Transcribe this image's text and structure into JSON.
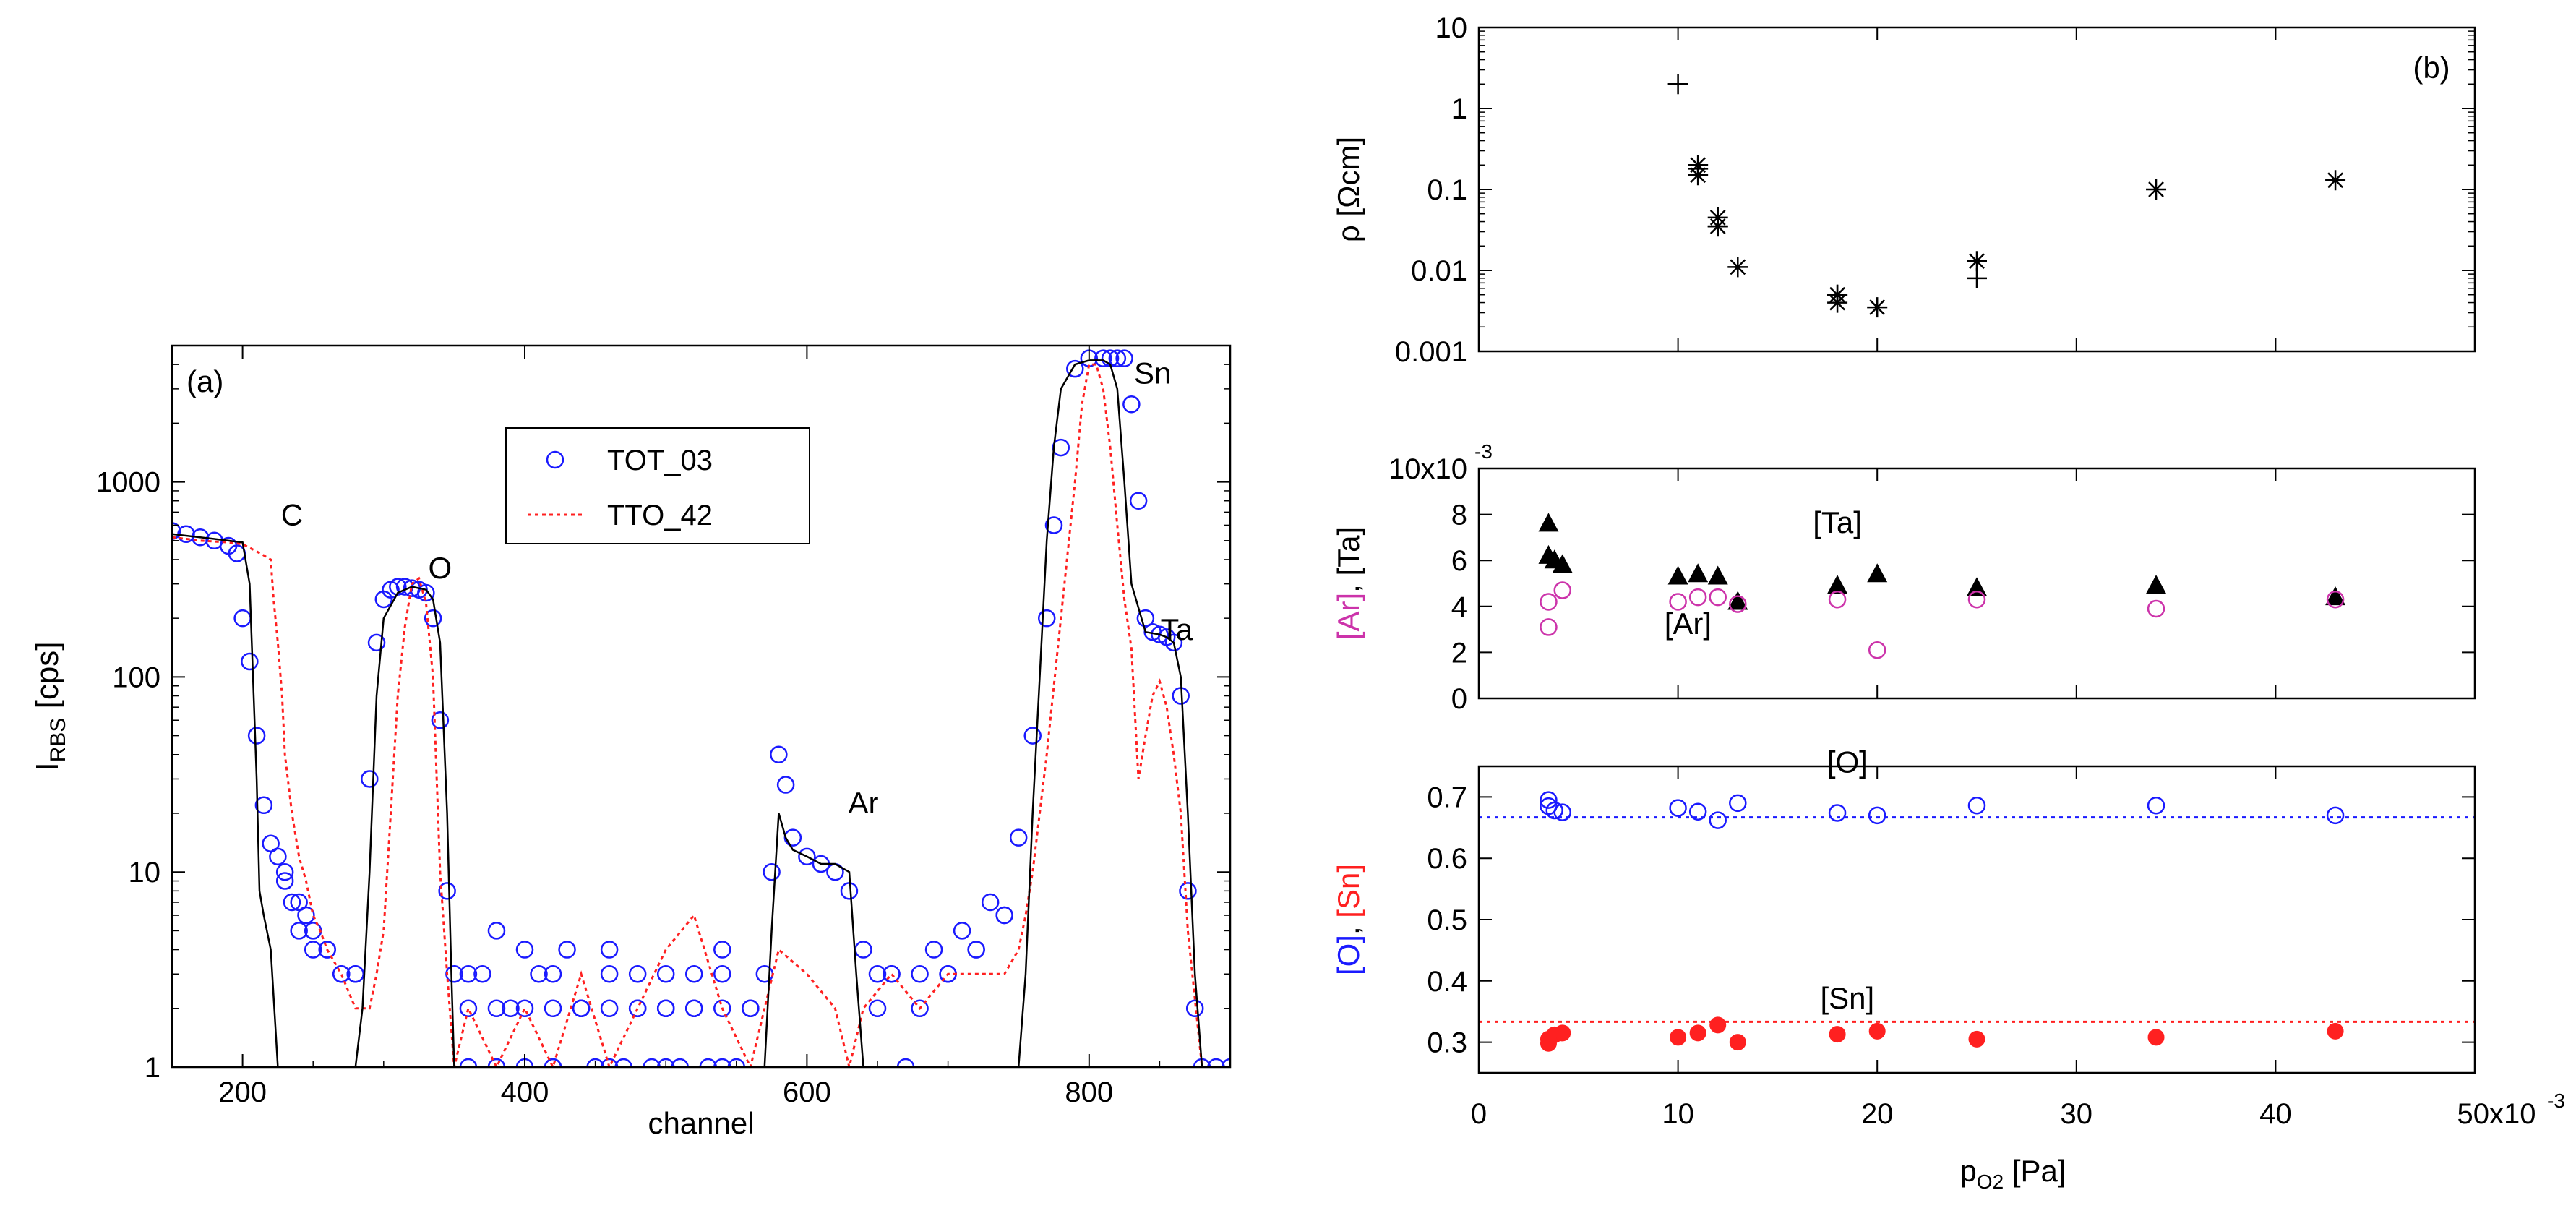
{
  "chart_data": [
    {
      "id": "a",
      "type": "line",
      "panel_label": "(a)",
      "xlabel": "channel",
      "ylabel_main": "I",
      "ylabel_sub": "RBS",
      "ylabel_unit": " [cps]",
      "xlim": [
        150,
        900
      ],
      "ylim": [
        1,
        5000
      ],
      "yscale": "log",
      "xticks": [
        200,
        400,
        600,
        800
      ],
      "xtick_labels": [
        "200",
        "400",
        "600",
        "800"
      ],
      "yticks": [
        1,
        10,
        100,
        1000
      ],
      "ytick_labels": [
        "1",
        "10",
        "100",
        "1000"
      ],
      "legend": [
        {
          "label": "TOT_03",
          "style": "circle",
          "color": "#1a1aff"
        },
        {
          "label": "TTO_42",
          "style": "dotted",
          "color": "#ff2020"
        }
      ],
      "annotations": [
        {
          "text": "C",
          "x": 235,
          "y": 600
        },
        {
          "text": "O",
          "x": 340,
          "y": 320
        },
        {
          "text": "Ar",
          "x": 640,
          "y": 20
        },
        {
          "text": "Sn",
          "x": 845,
          "y": 3200
        },
        {
          "text": "Ta",
          "x": 862,
          "y": 155
        }
      ],
      "series": [
        {
          "name": "TOT_03",
          "style": "circle",
          "color": "#1a1aff",
          "x": [
            150,
            160,
            170,
            180,
            190,
            196,
            200,
            205,
            210,
            215,
            220,
            225,
            230,
            235,
            240,
            250,
            260,
            270,
            280,
            290,
            295,
            300,
            305,
            310,
            315,
            320,
            325,
            330,
            335,
            340,
            345,
            350,
            360,
            380,
            400,
            420,
            440,
            460,
            480,
            500,
            520,
            540,
            560,
            570,
            575,
            580,
            585,
            590,
            600,
            610,
            620,
            630,
            640,
            650,
            660,
            680,
            700,
            720,
            740,
            750,
            760,
            770,
            775,
            780,
            790,
            800,
            810,
            815,
            820,
            825,
            830,
            835,
            840,
            845,
            850,
            855,
            860,
            865,
            870,
            875,
            880,
            890,
            900
          ],
          "y": [
            560,
            540,
            520,
            500,
            470,
            430,
            200,
            120,
            50,
            22,
            14,
            12,
            9,
            7,
            5,
            4,
            4,
            3,
            3,
            30,
            150,
            250,
            280,
            290,
            290,
            285,
            280,
            270,
            200,
            60,
            8,
            3,
            2,
            2,
            2,
            2,
            2,
            2,
            2,
            2,
            2,
            2,
            2,
            3,
            10,
            40,
            28,
            15,
            12,
            11,
            10,
            8,
            4,
            3,
            3,
            3,
            3,
            4,
            6,
            15,
            50,
            200,
            600,
            1500,
            3800,
            4300,
            4300,
            4300,
            4300,
            4300,
            2500,
            800,
            200,
            170,
            165,
            160,
            150,
            80,
            8,
            2,
            1,
            1,
            1
          ]
        },
        {
          "name": "TOT_03 scatter",
          "style": "circle",
          "color": "#1a1aff",
          "x": [
            230,
            240,
            245,
            250,
            260,
            270,
            280,
            360,
            370,
            380,
            390,
            400,
            410,
            420,
            430,
            440,
            450,
            460,
            470,
            480,
            490,
            500,
            510,
            520,
            530,
            540,
            550,
            560,
            650,
            660,
            670,
            680,
            690,
            700,
            710,
            720,
            730,
            740,
            360,
            380,
            400,
            420,
            440,
            460,
            480,
            500,
            520,
            540,
            380,
            420,
            460,
            500,
            540
          ],
          "y": [
            10,
            7,
            6,
            5,
            4,
            3,
            3,
            1,
            3,
            1,
            2,
            1,
            3,
            1,
            4,
            2,
            1,
            3,
            1,
            2,
            1,
            3,
            1,
            2,
            1,
            3,
            1,
            2,
            2,
            3,
            1,
            2,
            4,
            3,
            5,
            4,
            7,
            6,
            3,
            5,
            4,
            3,
            2,
            4,
            3,
            2,
            3,
            4,
            1,
            1,
            1,
            1,
            1
          ]
        },
        {
          "name": "TTO_42",
          "style": "dotted",
          "color": "#ff2020",
          "x": [
            150,
            170,
            190,
            200,
            210,
            215,
            220,
            222,
            225,
            228,
            230,
            235,
            240,
            245,
            250,
            255,
            260,
            270,
            280,
            290,
            295,
            300,
            305,
            310,
            315,
            320,
            325,
            330,
            335,
            340,
            345,
            350,
            360,
            380,
            400,
            420,
            440,
            460,
            480,
            500,
            520,
            540,
            560,
            580,
            600,
            620,
            630,
            640,
            660,
            680,
            700,
            720,
            740,
            750,
            755,
            760,
            770,
            780,
            790,
            795,
            800,
            805,
            810,
            815,
            820,
            825,
            830,
            835,
            840,
            845,
            850,
            855,
            860,
            865,
            870,
            880,
            900
          ],
          "y": [
            520,
            500,
            490,
            480,
            440,
            420,
            400,
            250,
            150,
            80,
            40,
            20,
            12,
            9,
            6,
            5,
            4,
            3,
            2,
            2,
            3,
            5,
            20,
            80,
            180,
            300,
            320,
            240,
            100,
            10,
            3,
            1,
            2,
            1,
            2,
            1,
            3,
            1,
            2,
            4,
            6,
            2,
            1,
            4,
            3,
            2,
            1,
            2,
            3,
            2,
            3,
            3,
            3,
            4,
            6,
            10,
            40,
            200,
            1000,
            2500,
            4000,
            4000,
            3000,
            1500,
            600,
            250,
            140,
            30,
            50,
            80,
            95,
            70,
            40,
            20,
            5,
            1,
            1
          ]
        },
        {
          "name": "fit",
          "style": "solid",
          "color": "#000000",
          "x": [
            150,
            180,
            200,
            205,
            210,
            212,
            215,
            220,
            225,
            280,
            285,
            290,
            295,
            300,
            310,
            320,
            330,
            335,
            340,
            345,
            348,
            350,
            570,
            575,
            580,
            585,
            590,
            600,
            610,
            620,
            630,
            635,
            640,
            750,
            755,
            760,
            765,
            770,
            775,
            780,
            790,
            800,
            810,
            815,
            820,
            825,
            830,
            840,
            850,
            855,
            860,
            865,
            870,
            875,
            880
          ],
          "y": [
            540,
            510,
            490,
            300,
            30,
            8,
            6,
            4,
            1,
            1,
            2,
            10,
            80,
            200,
            270,
            290,
            280,
            250,
            150,
            20,
            3,
            1,
            1,
            5,
            20,
            15,
            13,
            12,
            11,
            11,
            10,
            3,
            1,
            1,
            3,
            20,
            100,
            500,
            1500,
            3000,
            4000,
            4200,
            4200,
            4000,
            3000,
            1000,
            300,
            170,
            165,
            160,
            150,
            100,
            20,
            3,
            1
          ]
        }
      ]
    },
    {
      "id": "b_top",
      "type": "scatter",
      "panel_label": "(b)",
      "ylabel": "ρ [Ωcm]",
      "xlim": [
        0,
        0.05
      ],
      "ylim": [
        0.001,
        10
      ],
      "yscale": "log",
      "yticks": [
        0.001,
        0.01,
        0.1,
        1,
        10
      ],
      "ytick_labels": [
        "0.001",
        "0.01",
        "0.1",
        "1",
        "10"
      ],
      "series": [
        {
          "name": "plus",
          "style": "plus",
          "color": "#000000",
          "x": [
            0.01,
            0.011,
            0.012,
            0.018,
            0.025
          ],
          "y": [
            2.0,
            0.18,
            0.035,
            0.005,
            0.008
          ]
        },
        {
          "name": "star",
          "style": "asterisk",
          "color": "#000000",
          "x": [
            0.011,
            0.011,
            0.012,
            0.012,
            0.013,
            0.018,
            0.018,
            0.02,
            0.025,
            0.034,
            0.043
          ],
          "y": [
            0.2,
            0.15,
            0.045,
            0.035,
            0.011,
            0.005,
            0.004,
            0.0035,
            0.013,
            0.1,
            0.13
          ]
        }
      ]
    },
    {
      "id": "b_mid",
      "type": "scatter",
      "ylabel_parts": [
        {
          "text": "[Ar]",
          "color": "#cc33aa"
        },
        {
          "text": ", [Ta]",
          "color": "#000000"
        }
      ],
      "xlim": [
        0,
        0.05
      ],
      "ylim": [
        0,
        0.01
      ],
      "yticks": [
        0,
        0.002,
        0.004,
        0.006,
        0.008,
        0.01
      ],
      "ytick_labels": [
        "0",
        "2",
        "4",
        "6",
        "8",
        "10x10"
      ],
      "ytick_exponent": "-3",
      "annotations": [
        {
          "text": "[Ta]",
          "color": "#000000",
          "x": 0.018,
          "y": 0.0072
        },
        {
          "text": "[Ar]",
          "color": "#cc33aa",
          "x": 0.0105,
          "y": 0.0028
        }
      ],
      "series": [
        {
          "name": "[Ta]",
          "style": "triangle",
          "color": "#000000",
          "x": [
            0.0035,
            0.0035,
            0.0038,
            0.0042,
            0.01,
            0.011,
            0.012,
            0.013,
            0.018,
            0.02,
            0.025,
            0.034,
            0.043
          ],
          "y": [
            0.0076,
            0.0062,
            0.006,
            0.0058,
            0.0053,
            0.0054,
            0.0053,
            0.0042,
            0.0049,
            0.0054,
            0.0048,
            0.0049,
            0.0044
          ]
        },
        {
          "name": "[Ar]",
          "style": "circle",
          "color": "#cc33aa",
          "x": [
            0.0035,
            0.0035,
            0.0042,
            0.01,
            0.011,
            0.012,
            0.013,
            0.018,
            0.02,
            0.025,
            0.034,
            0.043
          ],
          "y": [
            0.0031,
            0.0042,
            0.0047,
            0.0042,
            0.0044,
            0.0044,
            0.0041,
            0.0043,
            0.0021,
            0.0043,
            0.0039,
            0.0043
          ]
        }
      ]
    },
    {
      "id": "b_bot",
      "type": "scatter",
      "ylabel_parts": [
        {
          "text": "[O]",
          "color": "#1a1aff"
        },
        {
          "text": ", ",
          "color": "#000000"
        },
        {
          "text": "[Sn]",
          "color": "#ff2020"
        }
      ],
      "xlabel_main": "p",
      "xlabel_sub": "O2",
      "xlabel_unit": " [Pa]",
      "xlim": [
        0,
        0.05
      ],
      "ylim": [
        0.25,
        0.75
      ],
      "xticks": [
        0,
        0.01,
        0.02,
        0.03,
        0.04,
        0.05
      ],
      "xtick_labels": [
        "0",
        "10",
        "20",
        "30",
        "40",
        "50x10"
      ],
      "xtick_exponent": "-3",
      "yticks": [
        0.3,
        0.4,
        0.5,
        0.6,
        0.7
      ],
      "ytick_labels": [
        "0.3",
        "0.4",
        "0.5",
        "0.6",
        "0.7"
      ],
      "reference_lines": [
        {
          "y": 0.6667,
          "color": "#1a1aff",
          "style": "dotted"
        },
        {
          "y": 0.3333,
          "color": "#ff2020",
          "style": "dotted"
        }
      ],
      "annotations": [
        {
          "text": "[O]",
          "color": "#1a1aff",
          "x": 0.0185,
          "y": 0.74
        },
        {
          "text": "[Sn]",
          "color": "#ff2020",
          "x": 0.0185,
          "y": 0.355
        }
      ],
      "series": [
        {
          "name": "[O]",
          "style": "circle",
          "color": "#1a1aff",
          "x": [
            0.0035,
            0.0035,
            0.0038,
            0.0042,
            0.01,
            0.011,
            0.012,
            0.013,
            0.018,
            0.02,
            0.025,
            0.034,
            0.043
          ],
          "y": [
            0.695,
            0.685,
            0.678,
            0.675,
            0.682,
            0.676,
            0.662,
            0.69,
            0.674,
            0.67,
            0.686,
            0.686,
            0.67
          ]
        },
        {
          "name": "[Sn]",
          "style": "filled-circle",
          "color": "#ff2020",
          "x": [
            0.0035,
            0.0035,
            0.0038,
            0.0042,
            0.01,
            0.011,
            0.012,
            0.013,
            0.018,
            0.02,
            0.025,
            0.034,
            0.043
          ],
          "y": [
            0.298,
            0.305,
            0.312,
            0.315,
            0.308,
            0.315,
            0.328,
            0.3,
            0.313,
            0.318,
            0.305,
            0.308,
            0.318
          ]
        }
      ]
    }
  ]
}
